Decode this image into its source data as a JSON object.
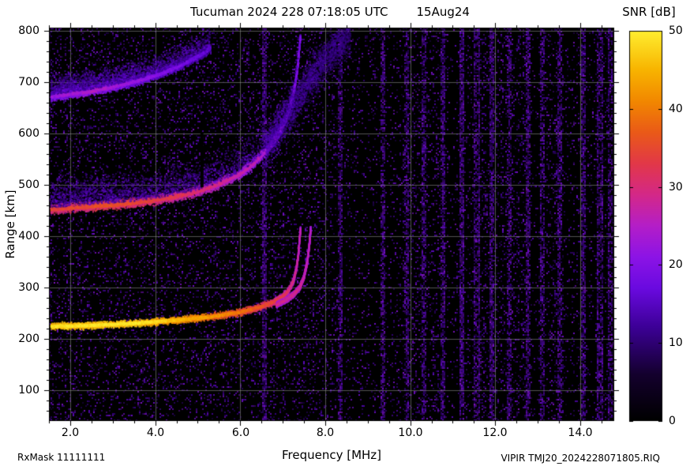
{
  "header": {
    "title": "Tucuman 2024 228 07:18:05 UTC",
    "date": "15Aug24"
  },
  "colorbar": {
    "title": "SNR [dB]",
    "min": 0,
    "max": 50,
    "tick_labels": [
      "50",
      "40",
      "30",
      "20",
      "10",
      "0"
    ],
    "stops": [
      [
        0.0,
        "#000000"
      ],
      [
        0.12,
        "#14002e"
      ],
      [
        0.24,
        "#3c0096"
      ],
      [
        0.34,
        "#6a0ae0"
      ],
      [
        0.42,
        "#8c14e6"
      ],
      [
        0.5,
        "#b41ec8"
      ],
      [
        0.58,
        "#d42888"
      ],
      [
        0.66,
        "#e23848"
      ],
      [
        0.74,
        "#ea5a18"
      ],
      [
        0.82,
        "#f28800"
      ],
      [
        0.9,
        "#f8b400"
      ],
      [
        1.0,
        "#ffee30"
      ]
    ]
  },
  "axes": {
    "x": {
      "label": "Frequency [MHz]",
      "tick_labels": [
        "2.0",
        "4.0",
        "6.0",
        "8.0",
        "10.0",
        "12.0",
        "14.0"
      ]
    },
    "y": {
      "label": "Range [km]",
      "tick_labels": [
        "800",
        "700",
        "600",
        "500",
        "400",
        "300",
        "200",
        "100"
      ]
    }
  },
  "footer": {
    "rxmask": "RxMask 11111111",
    "station_file": "VIPIR  TMJ20_2024228071805.RIQ"
  },
  "chart_data": {
    "type": "heatmap",
    "title": "Tucuman 2024 228 07:18:05 UTC",
    "date": "15Aug24",
    "xlabel": "Frequency [MHz]",
    "ylabel": "Range [km]",
    "zlabel": "SNR [dB]",
    "xlim": [
      1.5,
      14.8
    ],
    "ylim": [
      40,
      806
    ],
    "zlim": [
      0,
      50
    ],
    "grid": true,
    "x_ticks": [
      2.0,
      4.0,
      6.0,
      8.0,
      10.0,
      12.0,
      14.0
    ],
    "y_ticks": [
      100,
      200,
      300,
      400,
      500,
      600,
      700,
      800
    ],
    "z_ticks": [
      0,
      10,
      20,
      30,
      40,
      50
    ],
    "critical_frequency_foF2_mhz": 7.45,
    "traces": [
      {
        "name": "first-hop-F-layer-O-mode",
        "points": [
          [
            1.55,
            224
          ],
          [
            2.0,
            225
          ],
          [
            2.5,
            226
          ],
          [
            3.0,
            228
          ],
          [
            3.5,
            230
          ],
          [
            4.0,
            233
          ],
          [
            4.5,
            236
          ],
          [
            5.0,
            240
          ],
          [
            5.5,
            245
          ],
          [
            6.0,
            252
          ],
          [
            6.4,
            260
          ],
          [
            6.8,
            272
          ],
          [
            7.0,
            282
          ],
          [
            7.15,
            295
          ],
          [
            7.25,
            312
          ],
          [
            7.32,
            335
          ],
          [
            7.37,
            365
          ],
          [
            7.4,
            395
          ],
          [
            7.42,
            415
          ]
        ],
        "snr": [
          [
            1.55,
            45
          ],
          [
            3.5,
            46
          ],
          [
            4.5,
            42
          ],
          [
            5.5,
            38
          ],
          [
            6.2,
            34
          ],
          [
            6.8,
            30
          ],
          [
            7.1,
            27
          ],
          [
            7.42,
            22
          ]
        ],
        "thickness_km": 9,
        "spread_km": 0,
        "diffuse": false
      },
      {
        "name": "first-hop-F-layer-X-mode",
        "points": [
          [
            6.85,
            266
          ],
          [
            7.05,
            274
          ],
          [
            7.25,
            286
          ],
          [
            7.4,
            300
          ],
          [
            7.5,
            320
          ],
          [
            7.58,
            350
          ],
          [
            7.63,
            385
          ],
          [
            7.66,
            415
          ]
        ],
        "snr": [
          [
            6.85,
            24
          ],
          [
            7.3,
            25
          ],
          [
            7.66,
            21
          ]
        ],
        "thickness_km": 7,
        "spread_km": 0,
        "diffuse": false
      },
      {
        "name": "second-hop-F-layer",
        "points": [
          [
            1.55,
            452
          ],
          [
            2.0,
            455
          ],
          [
            2.5,
            458
          ],
          [
            3.0,
            461
          ],
          [
            3.5,
            465
          ],
          [
            4.0,
            470
          ],
          [
            4.5,
            477
          ],
          [
            5.0,
            487
          ],
          [
            5.5,
            501
          ],
          [
            6.0,
            521
          ],
          [
            6.3,
            540
          ],
          [
            6.6,
            565
          ],
          [
            6.9,
            598
          ],
          [
            7.1,
            632
          ],
          [
            7.25,
            675
          ],
          [
            7.35,
            725
          ],
          [
            7.42,
            790
          ]
        ],
        "snr": [
          [
            1.55,
            30
          ],
          [
            3.0,
            32
          ],
          [
            4.5,
            28
          ],
          [
            5.5,
            25
          ],
          [
            6.3,
            22
          ],
          [
            6.8,
            19
          ],
          [
            7.42,
            15
          ]
        ],
        "thickness_km": 13,
        "spread_km": 75,
        "diffuse": false
      },
      {
        "name": "third-hop-F-layer",
        "points": [
          [
            1.55,
            672
          ],
          [
            2.0,
            677
          ],
          [
            2.5,
            683
          ],
          [
            3.0,
            691
          ],
          [
            3.5,
            701
          ],
          [
            4.0,
            713
          ],
          [
            4.5,
            729
          ],
          [
            5.0,
            749
          ],
          [
            5.3,
            766
          ]
        ],
        "snr": [
          [
            1.55,
            18
          ],
          [
            2.5,
            21
          ],
          [
            3.5,
            18
          ],
          [
            4.5,
            15
          ],
          [
            5.3,
            12
          ]
        ],
        "thickness_km": 12,
        "spread_km": 48,
        "diffuse": false
      },
      {
        "name": "second-hop-spread-diffuse",
        "points": [
          [
            6.6,
            575
          ],
          [
            7.1,
            630
          ],
          [
            7.6,
            700
          ],
          [
            8.1,
            755
          ],
          [
            8.6,
            795
          ]
        ],
        "snr": [
          [
            6.6,
            14
          ],
          [
            8.6,
            11
          ]
        ],
        "thickness_km": 55,
        "spread_km": 0,
        "diffuse": true
      }
    ],
    "noise": {
      "background_snr_db_max": 14,
      "rfi_lines_mhz": [
        6.55,
        8.35,
        9.35,
        9.9,
        10.3,
        10.75,
        11.2,
        11.55,
        11.9,
        12.3,
        12.75,
        13.1,
        13.5,
        14.05,
        14.45,
        14.7
      ],
      "rfi_bands_mhz": [
        [
          9.8,
          10.7
        ],
        [
          11.6,
          12.7
        ],
        [
          13.0,
          13.6
        ]
      ]
    },
    "gaps_mhz": [
      5.1
    ]
  }
}
